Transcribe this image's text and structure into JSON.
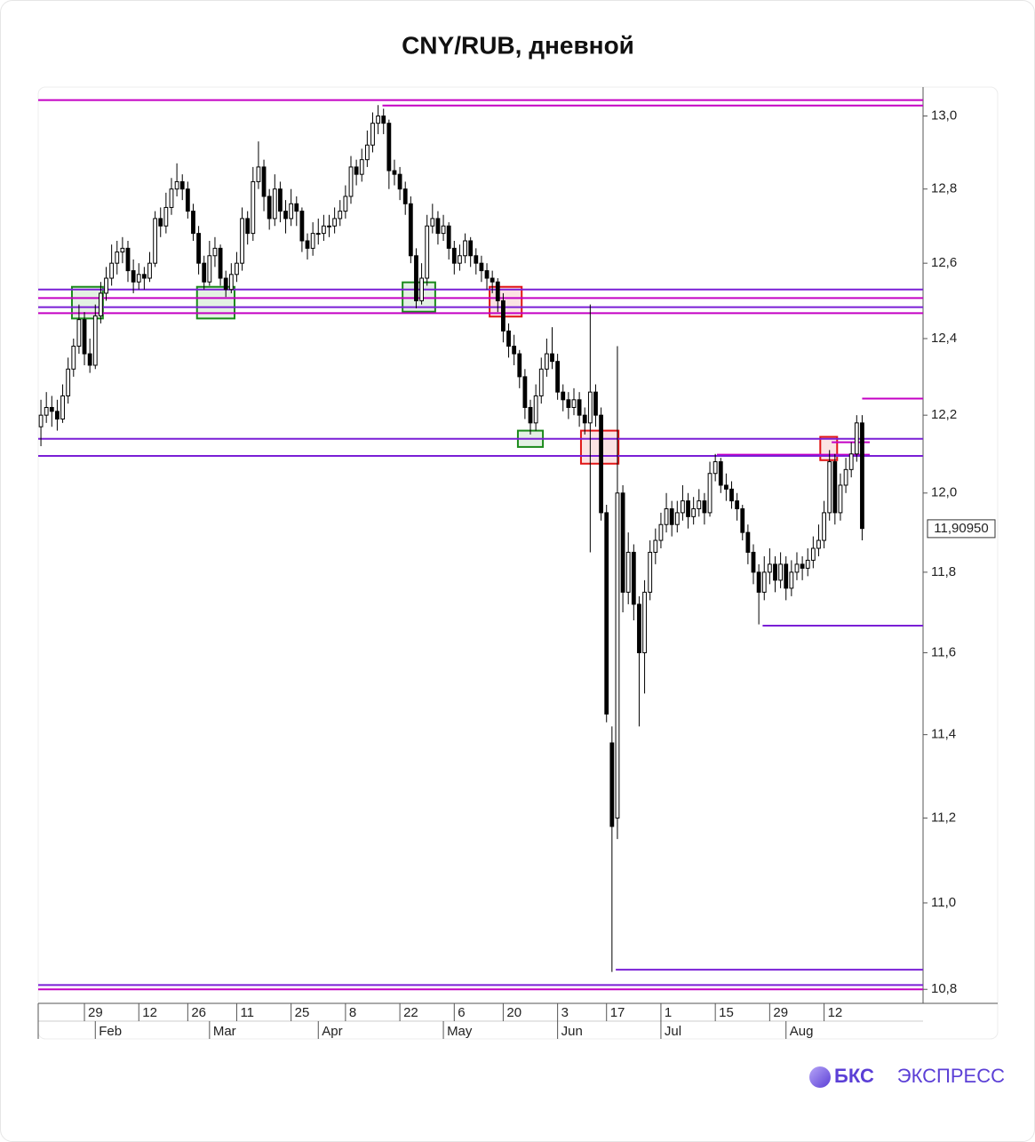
{
  "chart_data": {
    "type": "candlestick",
    "title": "CNY/RUB, дневной",
    "log_scale": true,
    "up_color": "#ffffff",
    "down_color": "#000000",
    "xlim": [
      -0.5,
      162.2
    ],
    "ylim": [
      10.774,
      13.08
    ],
    "yticks": [
      {
        "value": 13.0,
        "label": "13,0"
      },
      {
        "value": 12.8,
        "label": "12,8"
      },
      {
        "value": 12.6,
        "label": "12,6"
      },
      {
        "value": 12.4,
        "label": "12,4"
      },
      {
        "value": 12.2,
        "label": "12,2"
      },
      {
        "value": 12.0,
        "label": "12,0"
      },
      {
        "value": 11.8,
        "label": "11,8"
      },
      {
        "value": 11.6,
        "label": "11,6"
      },
      {
        "value": 11.4,
        "label": "11,4"
      },
      {
        "value": 11.2,
        "label": "11,2"
      },
      {
        "value": 11.0,
        "label": "11,0"
      },
      {
        "value": 10.8,
        "label": "10,8"
      }
    ],
    "xticks": [
      {
        "value": 8,
        "label": "29"
      },
      {
        "value": 18,
        "label": "12"
      },
      {
        "value": 27,
        "label": "26"
      },
      {
        "value": 36,
        "label": "11"
      },
      {
        "value": 46,
        "label": "25"
      },
      {
        "value": 56,
        "label": "8"
      },
      {
        "value": 66,
        "label": "22"
      },
      {
        "value": 76,
        "label": "6"
      },
      {
        "value": 85,
        "label": "20"
      },
      {
        "value": 95,
        "label": "3"
      },
      {
        "value": 104,
        "label": "17"
      },
      {
        "value": 114,
        "label": "1"
      },
      {
        "value": 124,
        "label": "15"
      },
      {
        "value": 134,
        "label": "29"
      },
      {
        "value": 144,
        "label": "12"
      }
    ],
    "month_ticks": [
      {
        "value": 10,
        "label": "Feb"
      },
      {
        "value": 31,
        "label": "Mar"
      },
      {
        "value": 51,
        "label": "Apr"
      },
      {
        "value": 74,
        "label": "May"
      },
      {
        "value": 95,
        "label": "Jun"
      },
      {
        "value": 114,
        "label": "Jul"
      },
      {
        "value": 137,
        "label": "Aug"
      }
    ],
    "x": [
      0,
      1,
      2,
      3,
      4,
      5,
      6,
      7,
      8,
      9,
      10,
      11,
      12,
      13,
      14,
      15,
      16,
      17,
      18,
      19,
      20,
      21,
      22,
      23,
      24,
      25,
      26,
      27,
      28,
      29,
      30,
      31,
      32,
      33,
      34,
      35,
      36,
      37,
      38,
      39,
      40,
      41,
      42,
      43,
      44,
      45,
      46,
      47,
      48,
      49,
      50,
      51,
      52,
      53,
      54,
      55,
      56,
      57,
      58,
      59,
      60,
      61,
      62,
      63,
      64,
      65,
      66,
      67,
      68,
      69,
      70,
      71,
      72,
      73,
      74,
      75,
      76,
      77,
      78,
      79,
      80,
      81,
      82,
      83,
      84,
      85,
      86,
      87,
      88,
      89,
      90,
      91,
      92,
      93,
      94,
      95,
      96,
      97,
      98,
      99,
      100,
      101,
      102,
      103,
      104,
      105,
      106,
      107,
      108,
      109,
      110,
      111,
      112,
      113,
      114,
      115,
      116,
      117,
      118,
      119,
      120,
      121,
      122,
      123,
      124,
      125,
      126,
      127,
      128,
      129,
      130,
      131,
      132,
      133,
      134,
      135,
      136,
      137,
      138,
      139,
      140,
      141,
      142,
      143,
      144,
      145,
      146,
      147,
      148,
      149,
      150,
      151
    ],
    "open": [
      12.17,
      12.2,
      12.22,
      12.21,
      12.19,
      12.25,
      12.32,
      12.38,
      12.45,
      12.36,
      12.33,
      12.46,
      12.52,
      12.56,
      12.6,
      12.63,
      12.64,
      12.58,
      12.55,
      12.57,
      12.56,
      12.6,
      12.72,
      12.7,
      12.75,
      12.8,
      12.82,
      12.8,
      12.74,
      12.68,
      12.6,
      12.55,
      12.62,
      12.64,
      12.56,
      12.53,
      12.57,
      12.6,
      12.72,
      12.68,
      12.82,
      12.86,
      12.78,
      12.72,
      12.8,
      12.74,
      12.72,
      12.76,
      12.74,
      12.66,
      12.64,
      12.68,
      12.68,
      12.7,
      12.7,
      12.72,
      12.74,
      12.78,
      12.86,
      12.84,
      12.88,
      12.92,
      12.98,
      13.0,
      12.98,
      12.85,
      12.84,
      12.8,
      12.76,
      12.62,
      12.5,
      12.56,
      12.7,
      12.72,
      12.68,
      12.7,
      12.64,
      12.6,
      12.62,
      12.66,
      12.62,
      12.6,
      12.58,
      12.56,
      12.55,
      12.5,
      12.42,
      12.38,
      12.36,
      12.3,
      12.22,
      12.18,
      12.25,
      12.32,
      12.36,
      12.34,
      12.26,
      12.24,
      12.22,
      12.24,
      12.2,
      12.18,
      12.26,
      12.2,
      11.95,
      11.38,
      11.2,
      12.0,
      11.75,
      11.85,
      11.72,
      11.6,
      11.75,
      11.85,
      11.88,
      11.92,
      11.96,
      11.92,
      11.95,
      11.98,
      11.94,
      11.96,
      11.98,
      11.95,
      12.05,
      12.08,
      12.02,
      12.01,
      11.98,
      11.96,
      11.9,
      11.85,
      11.8,
      11.75,
      11.8,
      11.82,
      11.78,
      11.82,
      11.76,
      11.8,
      11.82,
      11.81,
      11.83,
      11.86,
      11.88,
      11.95,
      12.08,
      11.95,
      12.02,
      12.06,
      12.1,
      12.18
    ],
    "high": [
      12.24,
      12.26,
      12.25,
      12.24,
      12.28,
      12.35,
      12.4,
      12.49,
      12.47,
      12.4,
      12.49,
      12.55,
      12.59,
      12.65,
      12.66,
      12.67,
      12.66,
      12.61,
      12.6,
      12.59,
      12.63,
      12.74,
      12.75,
      12.79,
      12.83,
      12.87,
      12.84,
      12.82,
      12.76,
      12.7,
      12.62,
      12.66,
      12.67,
      12.65,
      12.58,
      12.6,
      12.63,
      12.75,
      12.74,
      12.86,
      12.93,
      12.88,
      12.8,
      12.84,
      12.82,
      12.77,
      12.8,
      12.78,
      12.75,
      12.68,
      12.71,
      12.72,
      12.73,
      12.73,
      12.75,
      12.77,
      12.81,
      12.89,
      12.88,
      12.91,
      12.96,
      13.01,
      13.03,
      13.02,
      12.99,
      12.88,
      12.86,
      12.82,
      12.78,
      12.64,
      12.6,
      12.73,
      12.76,
      12.74,
      12.73,
      12.71,
      12.66,
      12.65,
      12.68,
      12.67,
      12.64,
      12.62,
      12.6,
      12.58,
      12.56,
      12.52,
      12.44,
      12.41,
      12.37,
      12.32,
      12.24,
      12.28,
      12.35,
      12.4,
      12.43,
      12.36,
      12.28,
      12.26,
      12.27,
      12.26,
      12.22,
      12.49,
      12.28,
      12.22,
      11.97,
      11.42,
      12.38,
      12.02,
      11.9,
      11.87,
      11.74,
      11.78,
      11.88,
      11.91,
      11.95,
      12.0,
      11.98,
      11.98,
      12.02,
      12.0,
      11.99,
      12.01,
      12.0,
      12.08,
      12.1,
      12.09,
      12.05,
      12.03,
      12.0,
      11.97,
      11.92,
      11.87,
      11.82,
      11.84,
      11.86,
      11.84,
      11.85,
      11.84,
      11.83,
      11.85,
      11.84,
      11.86,
      11.89,
      11.92,
      11.98,
      12.11,
      12.1,
      12.05,
      12.09,
      12.13,
      12.2,
      12.2
    ],
    "low": [
      12.12,
      12.18,
      12.17,
      12.16,
      12.18,
      12.23,
      12.3,
      12.36,
      12.33,
      12.31,
      12.32,
      12.44,
      12.5,
      12.54,
      12.57,
      12.6,
      12.55,
      12.52,
      12.53,
      12.53,
      12.55,
      12.59,
      12.67,
      12.68,
      12.73,
      12.78,
      12.77,
      12.72,
      12.66,
      12.57,
      12.53,
      12.54,
      12.59,
      12.54,
      12.51,
      12.52,
      12.55,
      12.58,
      12.65,
      12.66,
      12.8,
      12.74,
      12.69,
      12.7,
      12.71,
      12.68,
      12.7,
      12.7,
      12.63,
      12.61,
      12.62,
      12.65,
      12.66,
      12.67,
      12.68,
      12.7,
      12.72,
      12.76,
      12.81,
      12.82,
      12.86,
      12.9,
      12.95,
      12.95,
      12.8,
      12.81,
      12.77,
      12.73,
      12.6,
      12.48,
      12.49,
      12.54,
      12.68,
      12.65,
      12.66,
      12.61,
      12.57,
      12.58,
      12.6,
      12.59,
      12.57,
      12.55,
      12.53,
      12.52,
      12.47,
      12.39,
      12.35,
      12.33,
      12.27,
      12.19,
      12.15,
      12.16,
      12.23,
      12.3,
      12.32,
      12.24,
      12.21,
      12.19,
      12.2,
      12.17,
      12.15,
      11.85,
      12.17,
      11.93,
      11.43,
      10.84,
      11.15,
      11.7,
      11.72,
      11.68,
      11.42,
      11.5,
      11.73,
      11.82,
      11.86,
      11.9,
      11.89,
      11.9,
      11.93,
      11.91,
      11.92,
      11.94,
      11.92,
      11.94,
      12.03,
      12.0,
      11.98,
      11.96,
      11.93,
      11.88,
      11.82,
      11.77,
      11.67,
      11.73,
      11.77,
      11.75,
      11.76,
      11.73,
      11.74,
      11.78,
      11.78,
      11.79,
      11.81,
      11.84,
      11.86,
      11.93,
      11.92,
      11.93,
      12.0,
      12.04,
      12.08,
      11.88
    ],
    "close": [
      12.2,
      12.22,
      12.21,
      12.19,
      12.25,
      12.32,
      12.38,
      12.45,
      12.36,
      12.33,
      12.46,
      12.52,
      12.56,
      12.6,
      12.63,
      12.64,
      12.58,
      12.55,
      12.57,
      12.56,
      12.6,
      12.72,
      12.7,
      12.75,
      12.8,
      12.82,
      12.8,
      12.74,
      12.68,
      12.6,
      12.55,
      12.62,
      12.64,
      12.56,
      12.53,
      12.57,
      12.6,
      12.72,
      12.68,
      12.82,
      12.86,
      12.78,
      12.72,
      12.8,
      12.74,
      12.72,
      12.76,
      12.74,
      12.66,
      12.64,
      12.68,
      12.68,
      12.7,
      12.7,
      12.72,
      12.74,
      12.78,
      12.86,
      12.84,
      12.88,
      12.92,
      12.98,
      13.0,
      12.98,
      12.85,
      12.84,
      12.8,
      12.76,
      12.62,
      12.5,
      12.56,
      12.7,
      12.72,
      12.68,
      12.7,
      12.64,
      12.6,
      12.62,
      12.66,
      12.62,
      12.6,
      12.58,
      12.56,
      12.55,
      12.5,
      12.42,
      12.38,
      12.36,
      12.3,
      12.22,
      12.18,
      12.25,
      12.32,
      12.36,
      12.34,
      12.26,
      12.24,
      12.22,
      12.24,
      12.2,
      12.18,
      12.26,
      12.2,
      11.95,
      11.45,
      11.18,
      12.0,
      11.75,
      11.85,
      11.72,
      11.6,
      11.75,
      11.85,
      11.88,
      11.92,
      11.96,
      11.92,
      11.95,
      11.98,
      11.94,
      11.96,
      11.98,
      11.95,
      12.05,
      12.08,
      12.02,
      12.01,
      11.98,
      11.96,
      11.9,
      11.85,
      11.8,
      11.75,
      11.8,
      11.82,
      11.78,
      11.82,
      11.76,
      11.8,
      11.82,
      11.81,
      11.83,
      11.86,
      11.88,
      11.95,
      12.08,
      11.95,
      12.02,
      12.06,
      12.1,
      12.18,
      11.91
    ],
    "levels": [
      {
        "price": 13.044,
        "color": "#c400c4"
      },
      {
        "price": 13.029,
        "color": "#c400c4",
        "from": 62.8
      },
      {
        "price": 12.53,
        "color": "#7a1fd6"
      },
      {
        "price": 12.507,
        "color": "#c400c4"
      },
      {
        "price": 12.483,
        "color": "#7a1fd6"
      },
      {
        "price": 12.467,
        "color": "#c400c4"
      },
      {
        "price": 12.243,
        "color": "#c400c4",
        "from": 151.0
      },
      {
        "price": 12.139,
        "color": "#7a1fd6"
      },
      {
        "price": 12.13,
        "color": "#c400c4",
        "from": 145.4,
        "to": 152.4
      },
      {
        "price": 12.098,
        "color": "#c400c4",
        "from": 124.3,
        "to": 152.4
      },
      {
        "price": 12.095,
        "color": "#7a1fd6"
      },
      {
        "price": 11.667,
        "color": "#7a1fd6",
        "from": 132.7
      },
      {
        "price": 10.845,
        "color": "#7a1fd6",
        "from": 105.7
      },
      {
        "price": 10.81,
        "color": "#7a1fd6"
      },
      {
        "price": 10.8,
        "color": "#c400c4"
      }
    ],
    "zones": [
      {
        "x": [
          5.7,
          11.4
        ],
        "y": [
          12.453,
          12.537
        ],
        "color": "#1a8a1a"
      },
      {
        "x": [
          28.7,
          35.6
        ],
        "y": [
          12.453,
          12.537
        ],
        "color": "#1a8a1a"
      },
      {
        "x": [
          66.5,
          72.5
        ],
        "y": [
          12.471,
          12.549
        ],
        "color": "#1a8a1a"
      },
      {
        "x": [
          87.7,
          92.3
        ],
        "y": [
          12.118,
          12.16
        ],
        "color": "#1a8a1a"
      },
      {
        "x": [
          82.5,
          88.4
        ],
        "y": [
          12.458,
          12.537
        ],
        "color": "#e01515"
      },
      {
        "x": [
          99.3,
          106.2
        ],
        "y": [
          12.075,
          12.16
        ],
        "color": "#e01515"
      },
      {
        "x": [
          143.3,
          146.4
        ],
        "y": [
          12.084,
          12.144
        ],
        "color": "#e01515"
      }
    ],
    "last_price": {
      "value": 11.9095,
      "label": "11,90950"
    }
  },
  "brand": {
    "name": "БКС",
    "tagline": "ЭКСПРЕСС"
  }
}
